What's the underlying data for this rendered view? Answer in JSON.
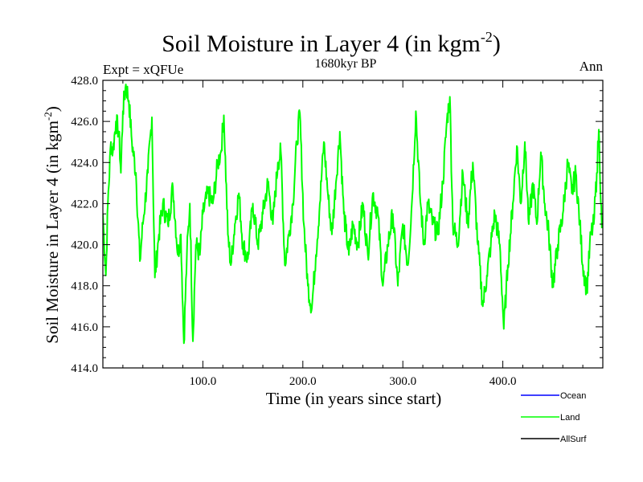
{
  "chart_data": {
    "type": "line",
    "title": "Soil Moisture in Layer 4 (in kgm",
    "title_sup": "-2",
    "title_close": ")",
    "subtitle": "1680kyr BP",
    "left_label": "Expt = xQFUe",
    "right_label": "Ann",
    "xlabel": "Time (in years since start)",
    "ylabel": "Soil Moisture in Layer 4 (in kgm",
    "ylabel_sup": "-2",
    "ylabel_close": ")",
    "xlim": [
      0,
      500
    ],
    "ylim": [
      414,
      428
    ],
    "x_ticks": [
      100,
      200,
      300,
      400
    ],
    "x_tick_labels": [
      "100.0",
      "200.0",
      "300.0",
      "400.0"
    ],
    "y_ticks": [
      414,
      416,
      418,
      420,
      422,
      424,
      426,
      428
    ],
    "y_tick_labels": [
      "414.0",
      "416.0",
      "418.0",
      "420.0",
      "422.0",
      "424.0",
      "426.0",
      "428.0"
    ],
    "legend": [
      {
        "name": "Ocean",
        "color": "#0000ff"
      },
      {
        "name": "Land",
        "color": "#00ff00"
      },
      {
        "name": "AllSurf",
        "color": "#000000"
      }
    ],
    "series": [
      {
        "name": "Land",
        "color": "#00ff00",
        "keypoints": [
          [
            0,
            421.5
          ],
          [
            3,
            418.5
          ],
          [
            5,
            422.0
          ],
          [
            8,
            425.0
          ],
          [
            10,
            424.5
          ],
          [
            13,
            426.0
          ],
          [
            16,
            425.5
          ],
          [
            18,
            423.5
          ],
          [
            20,
            426.5
          ],
          [
            23,
            427.8
          ],
          [
            26,
            427.0
          ],
          [
            29,
            425.0
          ],
          [
            33,
            423.5
          ],
          [
            37,
            419.2
          ],
          [
            40,
            421.0
          ],
          [
            45,
            423.5
          ],
          [
            49,
            426.2
          ],
          [
            52,
            418.4
          ],
          [
            56,
            420.5
          ],
          [
            60,
            422.0
          ],
          [
            65,
            421.0
          ],
          [
            70,
            422.8
          ],
          [
            75,
            419.5
          ],
          [
            78,
            420.5
          ],
          [
            81,
            415.2
          ],
          [
            84,
            419.5
          ],
          [
            87,
            422.0
          ],
          [
            90,
            415.3
          ],
          [
            93,
            420.0
          ],
          [
            97,
            419.5
          ],
          [
            100,
            421.5
          ],
          [
            105,
            422.5
          ],
          [
            110,
            422.0
          ],
          [
            115,
            424.0
          ],
          [
            118,
            424.5
          ],
          [
            121,
            426.3
          ],
          [
            125,
            420.5
          ],
          [
            128,
            419.0
          ],
          [
            132,
            421.0
          ],
          [
            136,
            422.5
          ],
          [
            140,
            420.0
          ],
          [
            145,
            419.3
          ],
          [
            150,
            422.0
          ],
          [
            155,
            420.0
          ],
          [
            160,
            421.5
          ],
          [
            165,
            423.0
          ],
          [
            170,
            421.0
          ],
          [
            175,
            424.0
          ],
          [
            178,
            424.5
          ],
          [
            182,
            419.0
          ],
          [
            186,
            420.5
          ],
          [
            190,
            422.0
          ],
          [
            194,
            425.0
          ],
          [
            197,
            426.4
          ],
          [
            201,
            421.0
          ],
          [
            205,
            418.0
          ],
          [
            209,
            416.9
          ],
          [
            213,
            419.5
          ],
          [
            217,
            422.0
          ],
          [
            221,
            425.0
          ],
          [
            225,
            422.5
          ],
          [
            229,
            420.5
          ],
          [
            233,
            423.0
          ],
          [
            237,
            425.5
          ],
          [
            241,
            421.5
          ],
          [
            246,
            419.5
          ],
          [
            250,
            421.0
          ],
          [
            255,
            420.0
          ],
          [
            260,
            422.0
          ],
          [
            265,
            419.5
          ],
          [
            270,
            422.5
          ],
          [
            275,
            421.5
          ],
          [
            280,
            418.0
          ],
          [
            285,
            420.0
          ],
          [
            290,
            421.5
          ],
          [
            295,
            418.0
          ],
          [
            300,
            421.0
          ],
          [
            305,
            419.0
          ],
          [
            309,
            422.0
          ],
          [
            313,
            426.5
          ],
          [
            317,
            422.5
          ],
          [
            321,
            420.0
          ],
          [
            325,
            422.0
          ],
          [
            330,
            421.0
          ],
          [
            335,
            420.5
          ],
          [
            340,
            423.0
          ],
          [
            344,
            426.0
          ],
          [
            347,
            427.2
          ],
          [
            350,
            421.0
          ],
          [
            355,
            420.0
          ],
          [
            360,
            423.5
          ],
          [
            365,
            421.0
          ],
          [
            370,
            424.0
          ],
          [
            375,
            420.0
          ],
          [
            380,
            417.0
          ],
          [
            384,
            418.5
          ],
          [
            388,
            420.0
          ],
          [
            392,
            421.5
          ],
          [
            397,
            420.0
          ],
          [
            401,
            415.9
          ],
          [
            405,
            419.0
          ],
          [
            410,
            422.0
          ],
          [
            414,
            424.8
          ],
          [
            418,
            422.0
          ],
          [
            422,
            425.0
          ],
          [
            426,
            421.0
          ],
          [
            430,
            423.0
          ],
          [
            434,
            421.0
          ],
          [
            438,
            424.5
          ],
          [
            442,
            422.0
          ],
          [
            446,
            420.5
          ],
          [
            450,
            418.0
          ],
          [
            455,
            420.0
          ],
          [
            460,
            421.5
          ],
          [
            465,
            424.0
          ],
          [
            469,
            422.5
          ],
          [
            473,
            423.5
          ],
          [
            477,
            421.0
          ],
          [
            480,
            419.0
          ],
          [
            484,
            417.8
          ],
          [
            488,
            420.5
          ],
          [
            491,
            421.0
          ],
          [
            494,
            423.5
          ],
          [
            496,
            425.6
          ],
          [
            499,
            420.8
          ]
        ]
      }
    ]
  }
}
